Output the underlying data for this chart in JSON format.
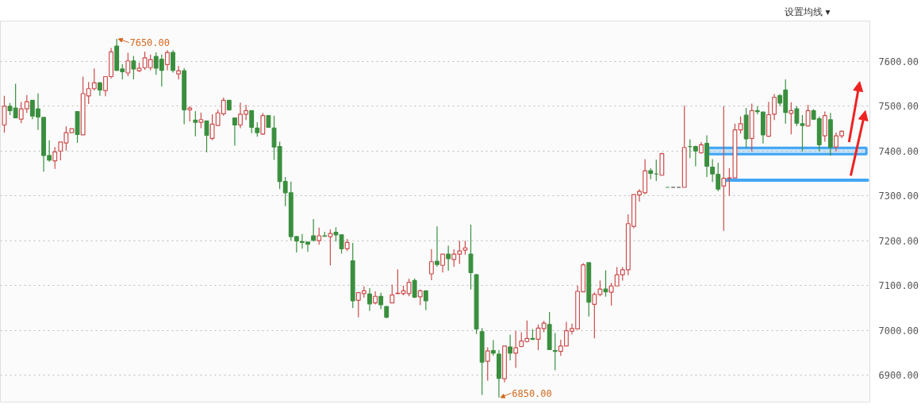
{
  "chart_data": {
    "type": "candlestick",
    "categories": [
      null,
      null,
      null,
      null,
      null,
      null,
      null,
      null,
      null,
      null,
      null,
      null,
      null,
      null,
      null,
      null,
      null,
      null,
      null,
      null,
      null,
      null,
      null,
      null,
      null,
      null,
      null,
      null,
      null,
      null,
      null,
      null,
      null,
      null,
      null,
      null,
      null,
      null,
      null,
      null,
      null,
      null,
      null,
      null,
      null,
      null,
      null,
      null,
      null,
      null,
      null,
      null,
      null,
      null,
      null,
      null,
      null,
      null,
      null,
      null,
      null,
      null,
      null,
      null,
      null,
      null,
      null,
      null,
      null,
      null,
      null,
      null,
      null,
      null,
      null,
      null,
      null,
      null,
      null,
      null,
      null,
      null,
      null,
      null,
      null,
      null,
      null,
      null,
      null,
      null,
      null,
      null,
      null,
      null,
      null,
      null,
      null,
      null,
      null,
      null,
      null,
      null,
      null,
      null,
      null,
      null,
      null,
      null,
      null,
      null,
      null,
      null,
      null,
      null,
      null,
      null,
      null,
      null,
      null,
      null,
      null,
      null,
      null,
      null,
      null,
      null,
      null,
      null,
      null,
      null,
      null,
      null,
      null,
      null,
      null,
      null,
      null,
      null,
      null,
      null,
      null,
      null,
      null,
      null,
      null,
      null,
      null,
      null,
      null,
      null
    ],
    "ohlc": [
      [
        7458,
        7523,
        7441,
        7500
      ],
      [
        7500,
        7507,
        7480,
        7490
      ],
      [
        7496,
        7550,
        7474,
        7474
      ],
      [
        7471,
        7510,
        7462,
        7494
      ],
      [
        7494,
        7525,
        7485,
        7510
      ],
      [
        7513,
        7513,
        7471,
        7478
      ],
      [
        7494,
        7529,
        7447,
        7476
      ],
      [
        7475,
        7475,
        7354,
        7390
      ],
      [
        7390,
        7424,
        7376,
        7380
      ],
      [
        7378,
        7409,
        7360,
        7398
      ],
      [
        7400,
        7420,
        7379,
        7420
      ],
      [
        7418,
        7455,
        7401,
        7441
      ],
      [
        7441,
        7450,
        7441,
        7450
      ],
      [
        7488,
        7488,
        7418,
        7437
      ],
      [
        7436,
        7566,
        7436,
        7528
      ],
      [
        7523,
        7554,
        7505,
        7539
      ],
      [
        7539,
        7584,
        7535,
        7552
      ],
      [
        7552,
        7554,
        7523,
        7536
      ],
      [
        7535,
        7566,
        7522,
        7566
      ],
      [
        7566,
        7630,
        7562,
        7621
      ],
      [
        7634,
        7650,
        7579,
        7580
      ],
      [
        7583,
        7594,
        7560,
        7577
      ],
      [
        7574,
        7619,
        7567,
        7601
      ],
      [
        7601,
        7612,
        7560,
        7583
      ],
      [
        7579,
        7597,
        7576,
        7585
      ],
      [
        7586,
        7622,
        7581,
        7608
      ],
      [
        7586,
        7615,
        7580,
        7604
      ],
      [
        7611,
        7620,
        7570,
        7585
      ],
      [
        7605,
        7615,
        7544,
        7580
      ],
      [
        7593,
        7625,
        7580,
        7620
      ],
      [
        7620,
        7625,
        7575,
        7580
      ],
      [
        7572,
        7590,
        7560,
        7579
      ],
      [
        7579,
        7585,
        7460,
        7492
      ],
      [
        7492,
        7500,
        7466,
        7496
      ],
      [
        7469,
        7489,
        7433,
        7464
      ],
      [
        7464,
        7486,
        7451,
        7470
      ],
      [
        7467,
        7467,
        7397,
        7435
      ],
      [
        7428,
        7482,
        7424,
        7460
      ],
      [
        7457,
        7492,
        7457,
        7485
      ],
      [
        7483,
        7519,
        7479,
        7513
      ],
      [
        7513,
        7513,
        7490,
        7492
      ],
      [
        7474,
        7474,
        7412,
        7458
      ],
      [
        7458,
        7508,
        7451,
        7482
      ],
      [
        7482,
        7503,
        7469,
        7490
      ],
      [
        7490,
        7490,
        7440,
        7453
      ],
      [
        7451,
        7464,
        7432,
        7441
      ],
      [
        7438,
        7485,
        7436,
        7479
      ],
      [
        7479,
        7479,
        7453,
        7453
      ],
      [
        7451,
        7479,
        7380,
        7409
      ],
      [
        7410,
        7421,
        7315,
        7332
      ],
      [
        7332,
        7342,
        7277,
        7307
      ],
      [
        7307,
        7332,
        7201,
        7209
      ],
      [
        7209,
        7211,
        7174,
        7199
      ],
      [
        7198,
        7215,
        7182,
        7196
      ],
      [
        7197,
        7197,
        7175,
        7192
      ],
      [
        7211,
        7248,
        7198,
        7201
      ],
      [
        7200,
        7229,
        7191,
        7211
      ],
      [
        7211,
        7220,
        7210,
        7210
      ],
      [
        7209,
        7225,
        7145,
        7216
      ],
      [
        7219,
        7230,
        7198,
        7213
      ],
      [
        7213,
        7213,
        7171,
        7182
      ],
      [
        7182,
        7204,
        7177,
        7196
      ],
      [
        7155,
        7195,
        7050,
        7066
      ],
      [
        7067,
        7085,
        7029,
        7084
      ],
      [
        7082,
        7098,
        7073,
        7088
      ],
      [
        7081,
        7094,
        7043,
        7059
      ],
      [
        7061,
        7087,
        7058,
        7076
      ],
      [
        7076,
        7084,
        7047,
        7057
      ],
      [
        7053,
        7053,
        7027,
        7029
      ],
      [
        7061,
        7102,
        7061,
        7079
      ],
      [
        7082,
        7136,
        7081,
        7083
      ],
      [
        7082,
        7100,
        7078,
        7088
      ],
      [
        7082,
        7115,
        7076,
        7107
      ],
      [
        7111,
        7116,
        7072,
        7074
      ],
      [
        7075,
        7091,
        7056,
        7088
      ],
      [
        7088,
        7089,
        7045,
        7066
      ],
      [
        7126,
        7181,
        7112,
        7153
      ],
      [
        7154,
        7232,
        7142,
        7147
      ],
      [
        7145,
        7170,
        7129,
        7170
      ],
      [
        7170,
        7189,
        7133,
        7160
      ],
      [
        7158,
        7181,
        7142,
        7170
      ],
      [
        7170,
        7200,
        7148,
        7177
      ],
      [
        7179,
        7200,
        7169,
        7184
      ],
      [
        7170,
        7236,
        7091,
        7129
      ],
      [
        7124,
        7126,
        6992,
        7003
      ],
      [
        6997,
        7005,
        6856,
        6929
      ],
      [
        6931,
        6962,
        6888,
        6954
      ],
      [
        6955,
        6978,
        6943,
        6949
      ],
      [
        6947,
        6956,
        6850,
        6893
      ],
      [
        6892,
        6965,
        6884,
        6965
      ],
      [
        6963,
        6990,
        6933,
        6949
      ],
      [
        6949,
        6999,
        6916,
        6961
      ],
      [
        6964,
        6996,
        6962,
        6976
      ],
      [
        6975,
        7022,
        6973,
        6982
      ],
      [
        6982,
        7003,
        6978,
        6980
      ],
      [
        6980,
        7013,
        6956,
        7005
      ],
      [
        7004,
        7021,
        6996,
        7016
      ],
      [
        7013,
        7041,
        6957,
        6957
      ],
      [
        6955,
        6994,
        6911,
        6953
      ],
      [
        6953,
        6979,
        6943,
        6965
      ],
      [
        6965,
        7019,
        6965,
        6999
      ],
      [
        6998,
        7015,
        6991,
        7004
      ],
      [
        7003,
        7100,
        7003,
        7087
      ],
      [
        7086,
        7150,
        7086,
        7146
      ],
      [
        7151,
        7151,
        7031,
        7063
      ],
      [
        7058,
        7085,
        6982,
        7080
      ],
      [
        7080,
        7111,
        7076,
        7092
      ],
      [
        7092,
        7134,
        7075,
        7086
      ],
      [
        7085,
        7106,
        7055,
        7099
      ],
      [
        7099,
        7141,
        7099,
        7124
      ],
      [
        7124,
        7141,
        7111,
        7135
      ],
      [
        7135,
        7259,
        7123,
        7238
      ],
      [
        7232,
        7303,
        7228,
        7303
      ],
      [
        7302,
        7315,
        7287,
        7310
      ],
      [
        7307,
        7382,
        7304,
        7356
      ],
      [
        7356,
        7362,
        7337,
        7350
      ],
      [
        7349,
        7381,
        7333,
        7349
      ],
      [
        7346,
        7396,
        7345,
        7394
      ],
      [
        7319,
        7319,
        7319,
        7319
      ],
      [
        7319,
        7319,
        7319,
        7319
      ],
      [
        7319,
        7319,
        7319,
        7319
      ],
      [
        7319,
        7501,
        7319,
        7408
      ],
      [
        7410,
        7426,
        7384,
        7410
      ],
      [
        7410,
        7412,
        7366,
        7400
      ],
      [
        7396,
        7420,
        7394,
        7414
      ],
      [
        7417,
        7435,
        7342,
        7366
      ],
      [
        7364,
        7382,
        7331,
        7349
      ],
      [
        7348,
        7374,
        7310,
        7315
      ],
      [
        7322,
        7500,
        7222,
        7339
      ],
      [
        7339,
        7362,
        7300,
        7340
      ],
      [
        7340,
        7461,
        7340,
        7447
      ],
      [
        7447,
        7477,
        7439,
        7461
      ],
      [
        7480,
        7496,
        7407,
        7427
      ],
      [
        7428,
        7506,
        7399,
        7490
      ],
      [
        7490,
        7500,
        7482,
        7488
      ],
      [
        7487,
        7487,
        7417,
        7436
      ],
      [
        7433,
        7510,
        7432,
        7481
      ],
      [
        7482,
        7527,
        7469,
        7520
      ],
      [
        7524,
        7527,
        7500,
        7507
      ],
      [
        7536,
        7560,
        7461,
        7486
      ],
      [
        7484,
        7509,
        7437,
        7490
      ],
      [
        7494,
        7500,
        7456,
        7462
      ],
      [
        7461,
        7480,
        7399,
        7457
      ],
      [
        7456,
        7503,
        7456,
        7490
      ],
      [
        7490,
        7493,
        7469,
        7471
      ],
      [
        7472,
        7477,
        7399,
        7414
      ],
      [
        7434,
        7488,
        7421,
        7479
      ],
      [
        7470,
        7485,
        7390,
        7408
      ],
      [
        7409,
        7441,
        7399,
        7434
      ],
      [
        7434,
        7446,
        7429,
        7444
      ]
    ],
    "colors": [
      "#cc4b4b",
      "#3a8f3e",
      "#3a8f3e",
      "#cc4b4b",
      "#cc4b4b",
      "#3a8f3e",
      "#3a8f3e",
      "#3a8f3e",
      "#3a8f3e",
      "#cc4b4b",
      "#cc4b4b",
      "#cc4b4b",
      "#cc4b4b",
      "#3a8f3e",
      "#cc4b4b",
      "#cc4b4b",
      "#cc4b4b",
      "#3a8f3e",
      "#cc4b4b",
      "#cc4b4b",
      "#3a8f3e",
      "#3a8f3e",
      "#cc4b4b",
      "#3a8f3e",
      "#cc4b4b",
      "#cc4b4b",
      "#cc4b4b",
      "#3a8f3e",
      "#3a8f3e",
      "#cc4b4b",
      "#3a8f3e",
      "#cc4b4b",
      "#3a8f3e",
      "#cc4b4b",
      "#3a8f3e",
      "#cc4b4b",
      "#3a8f3e",
      "#cc4b4b",
      "#cc4b4b",
      "#cc4b4b",
      "#3a8f3e",
      "#3a8f3e",
      "#cc4b4b",
      "#cc4b4b",
      "#3a8f3e",
      "#3a8f3e",
      "#cc4b4b",
      "#3a8f3e",
      "#3a8f3e",
      "#3a8f3e",
      "#3a8f3e",
      "#3a8f3e",
      "#3a8f3e",
      "#3a8f3e",
      "#3a8f3e",
      "#3a8f3e",
      "#cc4b4b",
      "#3a8f3e",
      "#cc4b4b",
      "#3a8f3e",
      "#3a8f3e",
      "#cc4b4b",
      "#3a8f3e",
      "#cc4b4b",
      "#cc4b4b",
      "#3a8f3e",
      "#cc4b4b",
      "#3a8f3e",
      "#3a8f3e",
      "#cc4b4b",
      "#cc4b4b",
      "#cc4b4b",
      "#cc4b4b",
      "#3a8f3e",
      "#cc4b4b",
      "#3a8f3e",
      "#cc4b4b",
      "#3a8f3e",
      "#cc4b4b",
      "#3a8f3e",
      "#cc4b4b",
      "#cc4b4b",
      "#cc4b4b",
      "#3a8f3e",
      "#3a8f3e",
      "#3a8f3e",
      "#cc4b4b",
      "#3a8f3e",
      "#3a8f3e",
      "#cc4b4b",
      "#3a8f3e",
      "#cc4b4b",
      "#cc4b4b",
      "#cc4b4b",
      "#3a8f3e",
      "#cc4b4b",
      "#cc4b4b",
      "#3a8f3e",
      "#3a8f3e",
      "#cc4b4b",
      "#cc4b4b",
      "#cc4b4b",
      "#cc4b4b",
      "#cc4b4b",
      "#3a8f3e",
      "#cc4b4b",
      "#cc4b4b",
      "#3a8f3e",
      "#cc4b4b",
      "#cc4b4b",
      "#cc4b4b",
      "#cc4b4b",
      "#cc4b4b",
      "#cc4b4b",
      "#cc4b4b",
      "#3a8f3e",
      "#3a8f3e",
      "#cc4b4b",
      "#3a8f3e",
      "#333333",
      "#333333",
      "#cc4b4b",
      "#3a8f3e",
      "#3a8f3e",
      "#cc4b4b",
      "#3a8f3e",
      "#3a8f3e",
      "#3a8f3e",
      "#cc4b4b",
      "#cc4b4b",
      "#cc4b4b",
      "#cc4b4b",
      "#3a8f3e",
      "#cc4b4b",
      "#3a8f3e",
      "#3a8f3e",
      "#cc4b4b",
      "#cc4b4b",
      "#3a8f3e",
      "#3a8f3e",
      "#cc4b4b",
      "#3a8f3e",
      "#3a8f3e",
      "#cc4b4b",
      "#3a8f3e",
      "#3a8f3e",
      "#cc4b4b",
      "#3a8f3e",
      "#cc4b4b",
      "#cc4b4b"
    ],
    "ylim": [
      6840,
      7690
    ],
    "yticks": [
      {
        "value": 6900,
        "label": "6900.00"
      },
      {
        "value": 7000,
        "label": "7000.00"
      },
      {
        "value": 7100,
        "label": "7100.00"
      },
      {
        "value": 7200,
        "label": "7200.00"
      },
      {
        "value": 7300,
        "label": "7300.00"
      },
      {
        "value": 7400,
        "label": "7400.00"
      },
      {
        "value": 7500,
        "label": "7500.00"
      },
      {
        "value": 7600,
        "label": "7600.00"
      }
    ],
    "grid": "y",
    "tick_labels": "y",
    "annotations": [
      "设置均线 ▾",
      "7650.00",
      "6850.00"
    ],
    "bands": [
      {
        "axis": "y",
        "from": 7393,
        "to": 7407,
        "color": "#2196f3"
      }
    ],
    "ref_lines": [
      {
        "axis": "y",
        "value": 7335,
        "color": "#2196f3"
      }
    ]
  }
}
